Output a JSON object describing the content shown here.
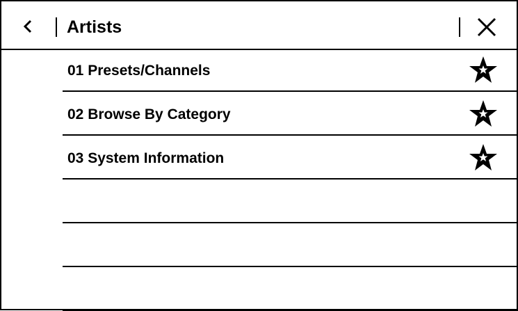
{
  "header": {
    "title": "Artists",
    "back_icon": "chevron-left-icon",
    "close_icon": "close-icon"
  },
  "list": {
    "items": [
      {
        "label": "01 Presets/Channels",
        "icon": "star-icon"
      },
      {
        "label": "02 Browse By Category",
        "icon": "star-icon"
      },
      {
        "label": "03 System Information",
        "icon": "star-icon"
      },
      {
        "label": ""
      },
      {
        "label": ""
      },
      {
        "label": ""
      }
    ]
  }
}
